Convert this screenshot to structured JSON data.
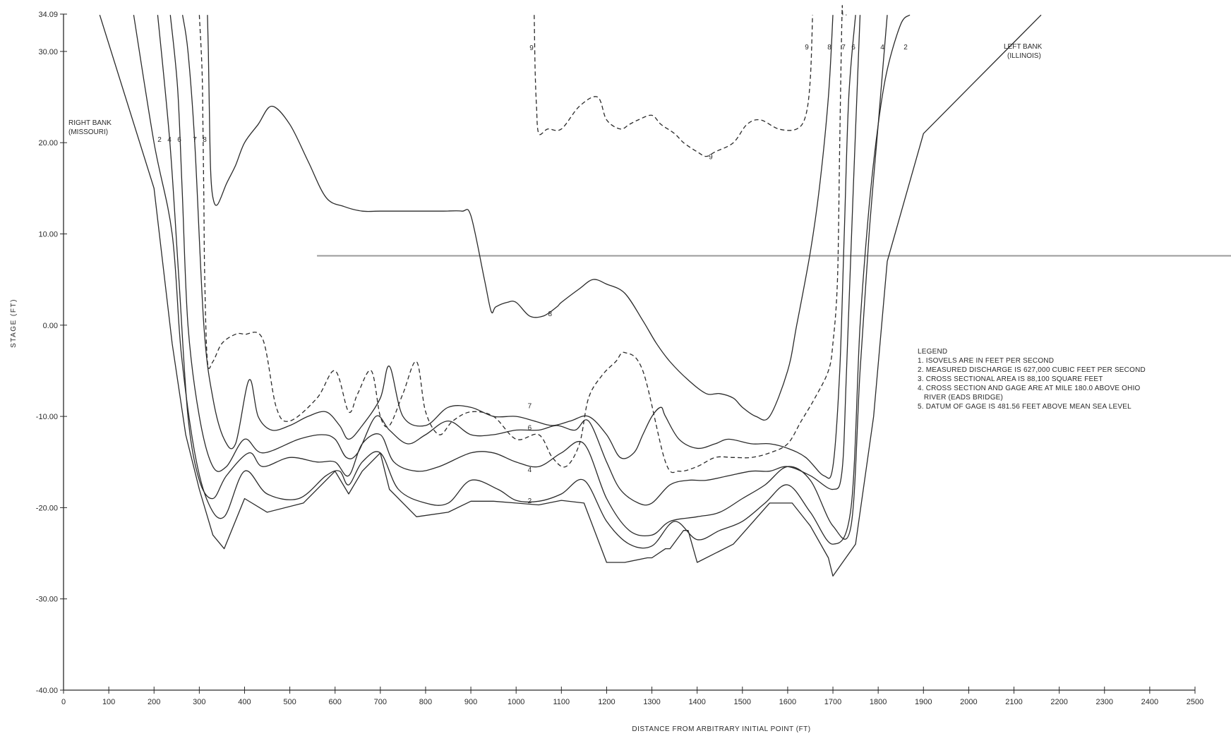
{
  "chart_data": {
    "type": "line",
    "title": "",
    "xlabel": "DISTANCE FROM ARBITRARY INITIAL POINT (FT)",
    "ylabel": "STAGE (FT)",
    "xlim": [
      0,
      2500
    ],
    "ylim": [
      -40,
      34.09
    ],
    "x_ticks": [
      0,
      100,
      200,
      300,
      400,
      500,
      600,
      700,
      800,
      900,
      1000,
      1100,
      1200,
      1300,
      1400,
      1500,
      1600,
      1700,
      1800,
      1900,
      2000,
      2100,
      2200,
      2300,
      2400,
      2500
    ],
    "x_tick_labels": [
      "0",
      "100",
      "200",
      "300",
      "400",
      "500",
      "600",
      "700",
      "800",
      "900",
      "1000",
      "1100",
      "1200",
      "1300",
      "1400",
      "1500",
      "1600",
      "1700",
      "1800",
      "1900",
      "2000",
      "2100",
      "2200",
      "2300",
      "2400",
      "2500"
    ],
    "y_ticks": [
      34.09,
      30,
      20,
      10,
      0,
      -10,
      -20,
      -30,
      -40
    ],
    "y_tick_labels": [
      "34.09",
      "30.00",
      "20.00",
      "10.00",
      "0.00",
      "-10.00",
      "-20.00",
      "-30.00",
      "-40.00"
    ],
    "grid": false,
    "water_surface_stage": 7.6,
    "annotations": {
      "right_bank": [
        "RIGHT BANK",
        "(MISSOURI)"
      ],
      "left_bank": [
        "LEFT BANK",
        "(ILLINOIS)"
      ]
    },
    "legend_lines": [
      "LEGEND",
      "1. ISOVELS ARE IN FEET PER SECOND",
      "2. MEASURED DISCHARGE IS 627,000 CUBIC FEET PER SECOND",
      "3. CROSS SECTIONAL AREA IS 88,100 SQUARE FEET",
      "4. CROSS SECTION AND GAGE ARE AT MILE 180.0 ABOVE OHIO",
      "   RIVER (EADS BRIDGE)",
      "5. DATUM OF GAGE IS 481.56 FEET ABOVE MEAN SEA LEVEL"
    ],
    "left_top_labels": [
      "2",
      "4",
      "6",
      "7",
      "8"
    ],
    "right_top_labels": [
      "9",
      "8",
      "7",
      "6",
      "4",
      "2"
    ],
    "series": [
      {
        "label": "",
        "dashed": false,
        "x": [
          80,
          200,
          240,
          270,
          300,
          330,
          355,
          400,
          450,
          530,
          600,
          630,
          660,
          700,
          720,
          780,
          850,
          900,
          950,
          1000,
          1050,
          1100,
          1150,
          1200,
          1240,
          1290,
          1300,
          1330,
          1340,
          1370,
          1380,
          1400,
          1480,
          1560,
          1610,
          1650,
          1690,
          1700,
          1750,
          1790,
          1820,
          1860,
          1900,
          2000,
          2100,
          2160
        ],
        "y": [
          34,
          15,
          -2,
          -12,
          -18,
          -23,
          -24.5,
          -19,
          -20.5,
          -19.5,
          -16,
          -18.5,
          -16,
          -14,
          -18,
          -21,
          -20.5,
          -19.3,
          -19.3,
          -19.5,
          -19.7,
          -19.2,
          -19.5,
          -26,
          -26,
          -25.5,
          -25.5,
          -24.5,
          -24.5,
          -22.5,
          -22.5,
          -26,
          -24,
          -19.5,
          -19.5,
          -22,
          -25.5,
          -27.5,
          -24,
          -10,
          7,
          14,
          21,
          26,
          31,
          34
        ]
      },
      {
        "label": "2",
        "dashed": false,
        "x": [
          155,
          200,
          240,
          260,
          290,
          320,
          355,
          400,
          450,
          520,
          580,
          610,
          630,
          660,
          700,
          740,
          800,
          850,
          900,
          960,
          1000,
          1050,
          1100,
          1150,
          1200,
          1250,
          1300,
          1350,
          1400,
          1450,
          1500,
          1550,
          1600,
          1650,
          1700,
          1740,
          1760,
          1780,
          1800,
          1820,
          1850,
          1870
        ],
        "y": [
          34,
          20,
          10,
          -3,
          -14,
          -19.5,
          -21,
          -16,
          -18.5,
          -19,
          -16.5,
          -16,
          -17.5,
          -15,
          -14,
          -18,
          -19.5,
          -19.5,
          -17,
          -18,
          -19.2,
          -19.3,
          -18.5,
          -17,
          -21.5,
          -24,
          -24.2,
          -21.5,
          -23.5,
          -22.5,
          -21.5,
          -19.5,
          -17.5,
          -20.5,
          -24,
          -20,
          0,
          13,
          22,
          28,
          33,
          34
        ]
      },
      {
        "label": "4",
        "dashed": false,
        "x": [
          208,
          235,
          255,
          275,
          300,
          330,
          360,
          410,
          440,
          500,
          560,
          600,
          630,
          660,
          700,
          730,
          780,
          830,
          900,
          950,
          1000,
          1050,
          1100,
          1150,
          1200,
          1250,
          1300,
          1340,
          1400,
          1450,
          1500,
          1550,
          1600,
          1650,
          1700,
          1740,
          1760,
          1780,
          1800,
          1820
        ],
        "y": [
          34,
          20,
          5,
          -10,
          -17,
          -19,
          -16.5,
          -14,
          -15.5,
          -14.5,
          -15,
          -15,
          -16.5,
          -13,
          -12,
          -15,
          -16,
          -15.5,
          -14,
          -14,
          -15,
          -15.5,
          -14,
          -13,
          -19,
          -22.5,
          -23,
          -21.5,
          -21,
          -20.5,
          -19,
          -17.5,
          -15.5,
          -17,
          -22,
          -22,
          -5,
          10,
          22,
          34
        ]
      },
      {
        "label": "6",
        "dashed": false,
        "x": [
          236,
          252,
          262,
          275,
          300,
          330,
          360,
          400,
          440,
          520,
          570,
          600,
          625,
          650,
          690,
          720,
          760,
          800,
          850,
          900,
          950,
          1000,
          1050,
          1090,
          1130,
          1160,
          1200,
          1230,
          1270,
          1300,
          1340,
          1380,
          1420,
          1470,
          1520,
          1560,
          1600,
          1650,
          1700,
          1720,
          1730,
          1745,
          1760
        ],
        "y": [
          34,
          26,
          15,
          0,
          -10,
          -15.5,
          -15.5,
          -12.5,
          -14,
          -12.5,
          -12,
          -12.5,
          -14.5,
          -14,
          -10,
          -11.5,
          -13,
          -12,
          -10.5,
          -12,
          -12,
          -11.5,
          -11.5,
          -11,
          -11.5,
          -10.5,
          -15,
          -18,
          -19.5,
          -19.5,
          -17.5,
          -17,
          -17,
          -16.5,
          -16,
          -16,
          -15.5,
          -16.5,
          -18,
          -16,
          -5,
          15,
          34
        ]
      },
      {
        "label": "",
        "dashed": false,
        "x": [
          263,
          275,
          290,
          310,
          330,
          355,
          380,
          410,
          430,
          460,
          500,
          540,
          580,
          610,
          630,
          660,
          700,
          720,
          750,
          800,
          850,
          900,
          950,
          1000,
          1040,
          1080,
          1120,
          1160,
          1200,
          1230,
          1260,
          1280,
          1300,
          1320,
          1330,
          1360,
          1400,
          1440,
          1470,
          1520,
          1560,
          1600,
          1640,
          1680,
          1700,
          1715,
          1725,
          1735,
          1750
        ],
        "y": [
          34,
          30,
          20,
          0,
          -8,
          -12.5,
          -13,
          -6,
          -10,
          -11.5,
          -11,
          -10,
          -9.5,
          -11,
          -12.5,
          -11,
          -8,
          -4.5,
          -10,
          -11,
          -9,
          -9,
          -10,
          -10,
          -10.5,
          -11,
          -10.5,
          -10,
          -12,
          -14.5,
          -14,
          -12,
          -10,
          -9,
          -10,
          -12.5,
          -13.5,
          -13,
          -12.5,
          -13,
          -13,
          -13.5,
          -14.5,
          -16.5,
          -15.5,
          -5,
          10,
          25,
          34
        ]
      },
      {
        "label": "7",
        "dashed": true,
        "x": [
          300,
          306,
          308,
          310,
          312,
          318,
          330,
          350,
          380,
          400,
          440,
          470,
          500,
          560,
          600,
          630,
          650,
          680,
          700,
          720,
          750,
          780,
          800,
          830,
          860,
          900,
          950,
          1000,
          1050,
          1080,
          1110,
          1140,
          1160,
          1190,
          1220,
          1240,
          1280,
          1330,
          1360,
          1400,
          1440,
          1480,
          1520,
          1560,
          1600,
          1630,
          1660,
          1690,
          1700,
          1710,
          1715,
          1720,
          1722,
          1730
        ],
        "y": [
          34,
          28,
          22,
          14,
          5,
          -4,
          -4,
          -2,
          -1,
          -1,
          -1.5,
          -9,
          -10.5,
          -8,
          -5,
          -9.5,
          -7.5,
          -5,
          -10,
          -11,
          -7.5,
          -4,
          -9.5,
          -12,
          -10.5,
          -9.5,
          -10,
          -12.5,
          -12,
          -14.5,
          -15.5,
          -13,
          -8,
          -5.5,
          -4,
          -3,
          -5,
          -15,
          -16,
          -15.5,
          -14.5,
          -14.5,
          -14.5,
          -14,
          -13,
          -10.5,
          -8,
          -5,
          -2,
          5,
          20,
          34,
          34,
          34
        ]
      },
      {
        "label": "8",
        "dashed": false,
        "x": [
          318,
          320,
          322,
          325,
          330,
          340,
          360,
          380,
          400,
          430,
          460,
          500,
          540,
          580,
          620,
          660,
          700,
          760,
          800,
          840,
          880,
          900,
          930,
          945,
          955,
          980,
          1000,
          1030,
          1060,
          1090,
          1100,
          1140,
          1170,
          1200,
          1240,
          1280,
          1310,
          1340,
          1380,
          1420,
          1450,
          1480,
          1500,
          1530,
          1560,
          1600,
          1620,
          1650,
          1670,
          1690,
          1700
        ],
        "y": [
          34,
          30,
          24,
          17,
          14,
          13.2,
          15.5,
          17.5,
          20,
          22,
          24,
          22,
          18,
          14,
          13,
          12.5,
          12.5,
          12.5,
          12.5,
          12.5,
          12.5,
          12,
          5,
          1.5,
          2,
          2.5,
          2.5,
          1,
          1,
          2,
          2.5,
          4,
          5,
          4.5,
          3.5,
          0.5,
          -2,
          -4,
          -6,
          -7.5,
          -7.5,
          -8,
          -9,
          -10,
          -10,
          -5,
          0,
          8,
          15,
          25,
          34
        ]
      },
      {
        "label": "9",
        "dashed": true,
        "x": [
          1040,
          1042,
          1045,
          1050,
          1070,
          1100,
          1140,
          1180,
          1200,
          1230,
          1250,
          1270,
          1300,
          1320,
          1350,
          1370,
          1400,
          1420,
          1440,
          1480,
          1510,
          1540,
          1580,
          1620,
          1640,
          1650,
          1655
        ],
        "y": [
          34,
          28,
          24,
          21,
          21.5,
          21.5,
          24,
          25,
          22.5,
          21.5,
          22,
          22.5,
          23,
          22,
          21,
          20,
          19,
          18.5,
          19,
          20,
          22,
          22.5,
          21.5,
          21.5,
          23,
          27,
          34
        ]
      }
    ],
    "in_plot_labels": [
      {
        "text": "9",
        "x": 1430,
        "y": 18.5
      },
      {
        "text": "8",
        "x": 1075,
        "y": 1.3
      },
      {
        "text": "7",
        "x": 1030,
        "y": -8.8
      },
      {
        "text": "6",
        "x": 1030,
        "y": -11.2
      },
      {
        "text": "4",
        "x": 1030,
        "y": -15.8
      },
      {
        "text": "2",
        "x": 1030,
        "y": -19.2
      }
    ],
    "colors": {
      "ink": "#2a2a2a",
      "water_line": "#9a9a9a",
      "background": "#ffffff"
    }
  }
}
